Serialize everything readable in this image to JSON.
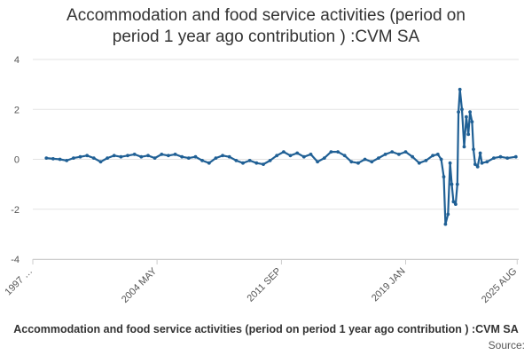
{
  "chart_data": {
    "type": "line",
    "title_lines": [
      "Accommodation and food service activities (period on",
      "period 1 year ago contribution ) :CVM SA"
    ],
    "series_name": "Accommodation and food service activities (period on period 1 year ago contribution ) :CVM SA",
    "source_label": "Source:",
    "ylim": [
      -4,
      4
    ],
    "yticks": [
      -4,
      -2,
      0,
      2,
      4
    ],
    "xlim": [
      1997.0,
      2025.67
    ],
    "xticks": [
      {
        "value": 1997.0,
        "label": "1997 …"
      },
      {
        "value": 2004.33,
        "label": "2004 MAY"
      },
      {
        "value": 2011.67,
        "label": "2011 SEP"
      },
      {
        "value": 2019.0,
        "label": "2019 JAN"
      },
      {
        "value": 2025.58,
        "label": "2025 AUG"
      }
    ],
    "color": "#206095",
    "points": [
      [
        1997.8,
        0.05
      ],
      [
        1998.2,
        0.02
      ],
      [
        1998.6,
        0.0
      ],
      [
        1999.0,
        -0.05
      ],
      [
        1999.4,
        0.05
      ],
      [
        1999.8,
        0.1
      ],
      [
        2000.2,
        0.15
      ],
      [
        2000.6,
        0.05
      ],
      [
        2001.0,
        -0.1
      ],
      [
        2001.4,
        0.05
      ],
      [
        2001.8,
        0.15
      ],
      [
        2002.2,
        0.1
      ],
      [
        2002.6,
        0.15
      ],
      [
        2003.0,
        0.2
      ],
      [
        2003.4,
        0.1
      ],
      [
        2003.8,
        0.15
      ],
      [
        2004.2,
        0.05
      ],
      [
        2004.6,
        0.2
      ],
      [
        2005.0,
        0.15
      ],
      [
        2005.4,
        0.2
      ],
      [
        2005.8,
        0.1
      ],
      [
        2006.2,
        0.05
      ],
      [
        2006.6,
        0.1
      ],
      [
        2007.0,
        -0.05
      ],
      [
        2007.4,
        -0.15
      ],
      [
        2007.8,
        0.05
      ],
      [
        2008.2,
        0.15
      ],
      [
        2008.6,
        0.1
      ],
      [
        2009.0,
        -0.05
      ],
      [
        2009.4,
        -0.15
      ],
      [
        2009.8,
        -0.05
      ],
      [
        2010.2,
        -0.15
      ],
      [
        2010.6,
        -0.2
      ],
      [
        2011.0,
        -0.05
      ],
      [
        2011.4,
        0.15
      ],
      [
        2011.8,
        0.3
      ],
      [
        2012.2,
        0.15
      ],
      [
        2012.6,
        0.25
      ],
      [
        2013.0,
        0.1
      ],
      [
        2013.4,
        0.2
      ],
      [
        2013.8,
        -0.1
      ],
      [
        2014.2,
        0.05
      ],
      [
        2014.6,
        0.3
      ],
      [
        2015.0,
        0.3
      ],
      [
        2015.4,
        0.15
      ],
      [
        2015.8,
        -0.1
      ],
      [
        2016.2,
        -0.15
      ],
      [
        2016.6,
        0.0
      ],
      [
        2017.0,
        -0.1
      ],
      [
        2017.4,
        0.05
      ],
      [
        2017.8,
        0.2
      ],
      [
        2018.2,
        0.3
      ],
      [
        2018.6,
        0.2
      ],
      [
        2019.0,
        0.3
      ],
      [
        2019.4,
        0.1
      ],
      [
        2019.8,
        -0.15
      ],
      [
        2020.2,
        -0.05
      ],
      [
        2020.6,
        0.15
      ],
      [
        2020.9,
        0.2
      ],
      [
        2021.1,
        0.0
      ],
      [
        2021.25,
        -0.7
      ],
      [
        2021.35,
        -2.6
      ],
      [
        2021.5,
        -2.2
      ],
      [
        2021.62,
        -0.15
      ],
      [
        2021.72,
        -1.0
      ],
      [
        2021.82,
        -1.7
      ],
      [
        2021.95,
        -1.8
      ],
      [
        2022.05,
        -1.0
      ],
      [
        2022.12,
        1.9
      ],
      [
        2022.2,
        2.8
      ],
      [
        2022.32,
        2.0
      ],
      [
        2022.45,
        0.5
      ],
      [
        2022.58,
        1.7
      ],
      [
        2022.7,
        1.0
      ],
      [
        2022.8,
        1.9
      ],
      [
        2022.92,
        1.5
      ],
      [
        2023.0,
        0.4
      ],
      [
        2023.1,
        -0.2
      ],
      [
        2023.25,
        -0.3
      ],
      [
        2023.4,
        0.25
      ],
      [
        2023.5,
        -0.15
      ],
      [
        2023.8,
        -0.1
      ],
      [
        2024.2,
        0.05
      ],
      [
        2024.6,
        0.1
      ],
      [
        2025.0,
        0.05
      ],
      [
        2025.5,
        0.1
      ]
    ]
  }
}
